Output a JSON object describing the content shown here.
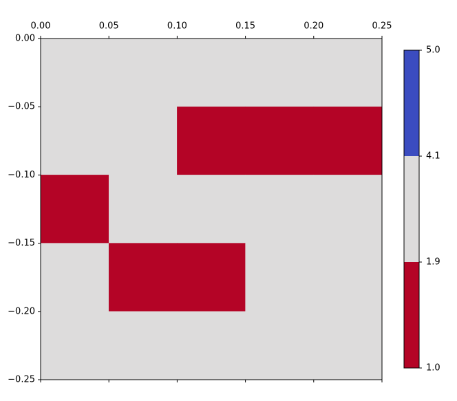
{
  "chart_data": {
    "type": "heatmap",
    "x": [
      0,
      0.05,
      0.1,
      0.15,
      0.2,
      0.25
    ],
    "y": [
      0,
      -0.05,
      -0.1,
      -0.15,
      -0.2,
      -0.25
    ],
    "values": [
      [
        3,
        3,
        3,
        3,
        3
      ],
      [
        3,
        3,
        1,
        1,
        1
      ],
      [
        1,
        3,
        3,
        3,
        3
      ],
      [
        3,
        1,
        1,
        3,
        3
      ],
      [
        3,
        3,
        3,
        3,
        3
      ]
    ],
    "xlim": [
      0,
      0.25
    ],
    "ylim": [
      -0.25,
      0
    ],
    "xticks": [
      {
        "value": 0,
        "label": "0.00"
      },
      {
        "value": 0.05,
        "label": "0.05"
      },
      {
        "value": 0.1,
        "label": "0.10"
      },
      {
        "value": 0.15,
        "label": "0.15"
      },
      {
        "value": 0.2,
        "label": "0.20"
      },
      {
        "value": 0.25,
        "label": "0.25"
      }
    ],
    "yticks": [
      {
        "value": 0,
        "label": "0.00"
      },
      {
        "value": -0.05,
        "label": "−0.05"
      },
      {
        "value": -0.1,
        "label": "−0.10"
      },
      {
        "value": -0.15,
        "label": "−0.15"
      },
      {
        "value": -0.2,
        "label": "−0.20"
      },
      {
        "value": -0.25,
        "label": "−0.25"
      }
    ],
    "colorbar": {
      "boundaries": [
        {
          "value": 1.0,
          "label": "1.0"
        },
        1.9,
        4.1,
        {
          "value": 5.0,
          "label": "5.0"
        }
      ],
      "colors": [
        "#b40426",
        "#dddcdc",
        "#3b4cc0"
      ]
    }
  }
}
